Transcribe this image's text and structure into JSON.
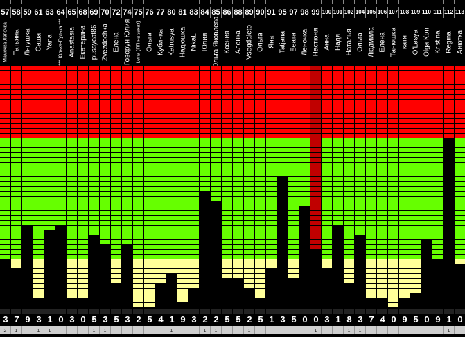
{
  "chart_data": {
    "type": "bar",
    "title": "",
    "ylim": [
      0,
      50
    ],
    "zones": [
      {
        "name": "red",
        "color": "#ff0000",
        "rows_from_top": 15
      },
      {
        "name": "green",
        "color": "#66ff00",
        "rows": 25
      },
      {
        "name": "yellow",
        "color": "#ffff99",
        "rows": 10
      }
    ],
    "highlight_color": "#c00000",
    "columns": [
      {
        "num": "57",
        "name": "Мамочка Лапочка",
        "level": 10,
        "digit": "3",
        "small": "2"
      },
      {
        "num": "58",
        "name": "Татьяна",
        "level": 8,
        "digit": "7",
        "small": "1"
      },
      {
        "num": "59",
        "name": "Лягушка",
        "level": 17,
        "digit": "9",
        "small": ""
      },
      {
        "num": "61",
        "name": "Саша",
        "level": 2,
        "digit": "3",
        "small": "1"
      },
      {
        "num": "63",
        "name": "Yana",
        "level": 16,
        "digit": "1",
        "small": "1"
      },
      {
        "num": "64",
        "name": "*** Юлька-Пулька ***",
        "level": 17,
        "digit": "0",
        "small": ""
      },
      {
        "num": "65",
        "name": "Anastasia",
        "level": 2,
        "digit": "3",
        "small": ""
      },
      {
        "num": "68",
        "name": "Екатерина",
        "level": 2,
        "digit": "0",
        "small": ""
      },
      {
        "num": "69",
        "name": "pussycat86",
        "level": 15,
        "digit": "5",
        "small": "1"
      },
      {
        "num": "70",
        "name": "Zvezdochka",
        "level": 13,
        "digit": "3",
        "small": "1"
      },
      {
        "num": "72",
        "name": "Елена",
        "level": 5,
        "digit": "5",
        "small": ""
      },
      {
        "num": "74",
        "name": "Говорун Юлия",
        "level": 13,
        "digit": "3",
        "small": ""
      },
      {
        "num": "75",
        "name": "Lena (ПП на заказ)",
        "level": 0,
        "digit": "2",
        "small": ""
      },
      {
        "num": "76",
        "name": "Ольга",
        "level": 0,
        "digit": "5",
        "small": ""
      },
      {
        "num": "77",
        "name": "Кубинка",
        "level": 5,
        "digit": "4",
        "small": ""
      },
      {
        "num": "80",
        "name": "Katrusya",
        "level": 7,
        "digit": "1",
        "small": "1"
      },
      {
        "num": "81",
        "name": "Надюшка",
        "level": 1,
        "digit": "9",
        "small": ""
      },
      {
        "num": "83",
        "name": "NikaL",
        "level": 4,
        "digit": "3",
        "small": ""
      },
      {
        "num": "84",
        "name": "Юлия",
        "level": 24,
        "digit": "2",
        "small": "1"
      },
      {
        "num": "85",
        "name": "Ольга Яковлева",
        "level": 22,
        "digit": "2",
        "small": "1"
      },
      {
        "num": "86",
        "name": "Ксения",
        "level": 6,
        "digit": "5",
        "small": ""
      },
      {
        "num": "88",
        "name": "Аленка",
        "level": 6,
        "digit": "5",
        "small": ""
      },
      {
        "num": "89",
        "name": "Vsegdaleto",
        "level": 4,
        "digit": "2",
        "small": "1"
      },
      {
        "num": "90",
        "name": "Ольга",
        "level": 2,
        "digit": "5",
        "small": ""
      },
      {
        "num": "91",
        "name": "Яна",
        "level": 8,
        "digit": "1",
        "small": ""
      },
      {
        "num": "95",
        "name": "Tatjana",
        "level": 27,
        "digit": "3",
        "small": ""
      },
      {
        "num": "97",
        "name": "Беата",
        "level": 6,
        "digit": "5",
        "small": ""
      },
      {
        "num": "98",
        "name": "Леночка",
        "level": 21,
        "digit": "0",
        "small": ""
      },
      {
        "num": "99",
        "name": "Настюня",
        "level": 12,
        "digit": "0",
        "small": "1",
        "highlight": true
      },
      {
        "num": "100",
        "name": "Анна",
        "level": 8,
        "digit": "3",
        "small": ""
      },
      {
        "num": "101",
        "name": "Надя",
        "level": 17,
        "digit": "1",
        "small": ""
      },
      {
        "num": "102",
        "name": "Наталья",
        "level": 5,
        "digit": "8",
        "small": "1"
      },
      {
        "num": "104",
        "name": "Ольга",
        "level": 15,
        "digit": "3",
        "small": "1"
      },
      {
        "num": "105",
        "name": "Людмила",
        "level": 2,
        "digit": "7",
        "small": ""
      },
      {
        "num": "106",
        "name": "Елена",
        "level": 2,
        "digit": "4",
        "small": ""
      },
      {
        "num": "107",
        "name": "Танюшка",
        "level": 0,
        "digit": "0",
        "small": ""
      },
      {
        "num": "108",
        "name": "катя",
        "level": 2,
        "digit": "9",
        "small": ""
      },
      {
        "num": "109",
        "name": "O'Lesya",
        "level": 3,
        "digit": "5",
        "small": ""
      },
      {
        "num": "110",
        "name": "Olga Kon",
        "level": 14,
        "digit": "0",
        "small": ""
      },
      {
        "num": "111",
        "name": "Kristina",
        "level": 10,
        "digit": "9",
        "small": ""
      },
      {
        "num": "112",
        "name": "Regina",
        "level": 35,
        "digit": "1",
        "small": "1"
      },
      {
        "num": "113",
        "name": "Анютка",
        "level": 9,
        "digit": "0",
        "small": ""
      }
    ]
  }
}
